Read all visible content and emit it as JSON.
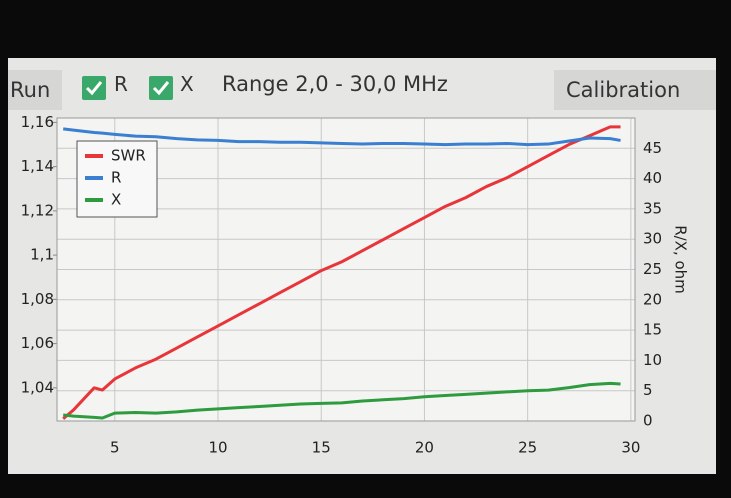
{
  "toolbar": {
    "run": "Run",
    "check_r": "R",
    "check_x": "X",
    "range": "Range 2,0 - 30,0 MHz",
    "calibration": "Calibration"
  },
  "chart_data": {
    "type": "line",
    "x": [
      2.5,
      3,
      4,
      4.4,
      5,
      6,
      7,
      8,
      9,
      10,
      11,
      12,
      13,
      14,
      15,
      16,
      17,
      18,
      19,
      20,
      21,
      22,
      23,
      24,
      25,
      26,
      27,
      28,
      29,
      29.5
    ],
    "series": [
      {
        "name": "SWR",
        "color": "#e8353a",
        "values": [
          1.026,
          1.03,
          1.04,
          1.039,
          1.044,
          1.049,
          1.053,
          1.058,
          1.063,
          1.068,
          1.073,
          1.078,
          1.083,
          1.088,
          1.093,
          1.097,
          1.102,
          1.107,
          1.112,
          1.117,
          1.122,
          1.126,
          1.131,
          1.135,
          1.14,
          1.145,
          1.15,
          1.154,
          1.158,
          1.158
        ]
      },
      {
        "name": "R",
        "color": "#3a7fd0",
        "axis": "y2",
        "values": [
          48.2,
          48,
          47.6,
          47.5,
          47.3,
          47,
          46.9,
          46.6,
          46.4,
          46.3,
          46.1,
          46.1,
          46,
          46,
          45.9,
          45.8,
          45.7,
          45.8,
          45.8,
          45.7,
          45.6,
          45.7,
          45.7,
          45.8,
          45.6,
          45.7,
          46.2,
          46.7,
          46.6,
          46.3
        ]
      },
      {
        "name": "X",
        "color": "#2e9b3e",
        "axis": "y2",
        "values": [
          1,
          0.8,
          0.6,
          0.5,
          1.3,
          1.4,
          1.3,
          1.5,
          1.8,
          2,
          2.2,
          2.4,
          2.6,
          2.8,
          2.9,
          3,
          3.3,
          3.5,
          3.7,
          4,
          4.2,
          4.4,
          4.6,
          4.8,
          5,
          5.1,
          5.5,
          6,
          6.2,
          6.1
        ]
      }
    ],
    "xlim": [
      2.2,
      30.2
    ],
    "xticks": [
      5,
      10,
      15,
      20,
      25,
      30
    ],
    "ylim": [
      1.025,
      1.162
    ],
    "yticks": [
      {
        "value": 1.04,
        "label": "1,04"
      },
      {
        "value": 1.06,
        "label": "1,06"
      },
      {
        "value": 1.08,
        "label": "1,08"
      },
      {
        "value": 1.1,
        "label": "1,1"
      },
      {
        "value": 1.12,
        "label": "1,12"
      },
      {
        "value": 1.14,
        "label": "1,14"
      },
      {
        "value": 1.16,
        "label": "1,16"
      }
    ],
    "y2lim": [
      0,
      50
    ],
    "y2ticks": [
      0,
      5,
      10,
      15,
      20,
      25,
      30,
      35,
      40,
      45
    ],
    "y2_label": "R/X, ohm",
    "grid": true,
    "legend": "top-left"
  }
}
